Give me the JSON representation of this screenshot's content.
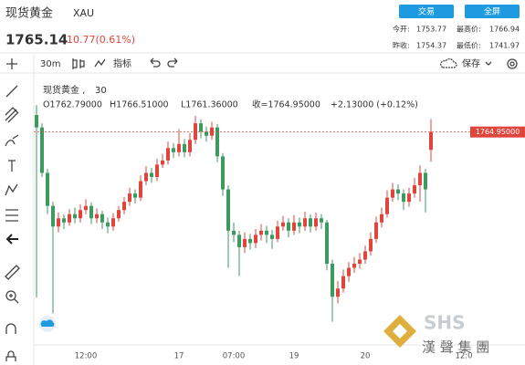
{
  "header": {
    "name": "现货黄金",
    "symbol": "XAU",
    "price": "1765.14",
    "change": "10.77(0.61%)",
    "buttons": [
      "交易",
      "全屏"
    ],
    "stats": [
      {
        "label": "今开:",
        "value": "1753.77"
      },
      {
        "label": "最高价:",
        "value": "1766.94"
      },
      {
        "label": "昨收:",
        "value": "1754.37"
      },
      {
        "label": "最低价:",
        "value": "1741.97"
      }
    ]
  },
  "toolbar": {
    "interval": "30m",
    "indicators": "指标",
    "save": "保存"
  },
  "legend": {
    "name": "现货黄金 ,",
    "interval": "30",
    "open": "O1762.79000",
    "high": "H1766.51000",
    "low": "L1761.36000",
    "close": "收=1764.95000",
    "change": "+2.13000 (+0.12%)"
  },
  "watermark": {
    "logo": "SHS",
    "text": "漢 聲 集 團"
  },
  "chart_data": {
    "type": "candlestick",
    "up_color": "#e0453c",
    "down_color": "#3c9a5f",
    "ylim": [
      1739.5,
      1769
    ],
    "price_line": {
      "value": 1764.95,
      "label": "1764.95000"
    },
    "categories": [
      null,
      null,
      null,
      null,
      null,
      null,
      null,
      null,
      null,
      "12:00",
      null,
      null,
      null,
      null,
      null,
      null,
      null,
      null,
      null,
      null,
      null,
      null,
      null,
      null,
      null,
      null,
      "17",
      null,
      null,
      null,
      null,
      null,
      null,
      null,
      null,
      null,
      "07:00",
      null,
      null,
      null,
      null,
      null,
      null,
      null,
      null,
      null,
      null,
      "19",
      null,
      null,
      null,
      null,
      null,
      null,
      null,
      null,
      null,
      null,
      null,
      null,
      "20",
      null,
      null,
      null,
      null,
      null,
      null,
      null,
      null,
      null,
      null,
      null,
      null,
      null,
      null,
      null,
      null,
      null,
      "12:0"
    ],
    "open": [
      1767,
      1765.5,
      1760,
      1756,
      1753.5,
      1754.5,
      1754,
      1755,
      1754.5,
      1755.5,
      1756,
      1754.5,
      1755,
      1754,
      1753.5,
      1754.5,
      1755.5,
      1756.5,
      1757.5,
      1757,
      1759,
      1760,
      1759.5,
      1761,
      1761.5,
      1763,
      1762.5,
      1763.5,
      1762.5,
      1764,
      1766,
      1765,
      1764.5,
      1765.5,
      1762,
      1758,
      1753,
      1752.5,
      1751,
      1752,
      1751.5,
      1752.5,
      1753,
      1752.5,
      1752,
      1753.5,
      1754,
      1753,
      1754,
      1753.5,
      1754.5,
      1753.5,
      1754.5,
      1754,
      1749,
      1745,
      1746,
      1747.5,
      1748.5,
      1749,
      1749.5,
      1750.5,
      1752,
      1754,
      1755,
      1757,
      1758,
      1757.5,
      1756.5,
      1757.5,
      1758.5,
      1760,
      1762.79,
      null,
      null,
      null,
      null,
      null,
      null
    ],
    "high": [
      1768.2,
      1766,
      1760.5,
      1756.5,
      1755.2,
      1755,
      1755.6,
      1755.8,
      1756.2,
      1756.8,
      1756.4,
      1755.7,
      1755.4,
      1754.6,
      1755.1,
      1756,
      1757.1,
      1758.2,
      1758,
      1759.7,
      1760.8,
      1760.6,
      1761.7,
      1762.3,
      1763.8,
      1763.6,
      1765.3,
      1764.1,
      1764.8,
      1766.9,
      1766.5,
      1765.6,
      1766.2,
      1765.9,
      1762.4,
      1758.5,
      1754,
      1753,
      1752.8,
      1752.6,
      1753.2,
      1753.8,
      1753.6,
      1753.1,
      1754.2,
      1754.8,
      1754.5,
      1754.9,
      1754.6,
      1755.3,
      1755,
      1755.2,
      1755,
      1754.3,
      1749.5,
      1746.9,
      1748.3,
      1749.2,
      1749.8,
      1750.3,
      1751.2,
      1752.8,
      1754.7,
      1755.8,
      1757.9,
      1758.8,
      1758.6,
      1758,
      1758.2,
      1759.4,
      1760.9,
      1760.5,
      1766.51,
      null,
      null,
      null,
      null,
      null,
      null
    ],
    "low": [
      1744.9,
      1759.5,
      1755,
      1743,
      1752.8,
      1753.2,
      1753.6,
      1753.9,
      1754,
      1755,
      1753.8,
      1753.9,
      1753.2,
      1752.7,
      1753,
      1754.1,
      1755,
      1756,
      1756.3,
      1756.6,
      1758.5,
      1758.8,
      1759,
      1760.6,
      1761,
      1761.8,
      1762,
      1761.9,
      1762,
      1763.5,
      1764.2,
      1763.8,
      1764,
      1761.3,
      1757.2,
      1748.5,
      1751.6,
      1747.5,
      1750.3,
      1750.7,
      1750.9,
      1751.8,
      1751.5,
      1750.8,
      1751.6,
      1753,
      1752.2,
      1752.5,
      1752.7,
      1753,
      1752.8,
      1753,
      1753.2,
      1748.2,
      1741.97,
      1744.2,
      1745.5,
      1746.8,
      1747.9,
      1748.4,
      1749,
      1750,
      1751.5,
      1753.4,
      1754.6,
      1756.5,
      1756.7,
      1755.5,
      1755.9,
      1757,
      1756.5,
      1755.2,
      1761.36,
      null,
      null,
      null,
      null,
      null,
      null
    ],
    "close": [
      1765.5,
      1760,
      1756,
      1753.5,
      1754.5,
      1754,
      1755,
      1754.5,
      1755.5,
      1756,
      1754.5,
      1755,
      1754,
      1753.5,
      1754.5,
      1755.5,
      1756.5,
      1757.5,
      1757,
      1759,
      1760,
      1759.5,
      1761,
      1761.5,
      1763,
      1762.5,
      1763.5,
      1762.5,
      1764,
      1766,
      1765,
      1764.5,
      1765.5,
      1762,
      1758,
      1753,
      1752.5,
      1751,
      1752,
      1751.5,
      1752.5,
      1753,
      1752.5,
      1752,
      1753.5,
      1754,
      1753,
      1754,
      1753.5,
      1754.5,
      1753.5,
      1754.5,
      1754,
      1749,
      1745,
      1746,
      1747.5,
      1748.5,
      1749,
      1749.5,
      1750.5,
      1752,
      1754,
      1755,
      1757,
      1758,
      1757.5,
      1756.5,
      1757.5,
      1758.5,
      1760,
      1758,
      1764.95,
      null,
      null,
      null,
      null,
      null,
      null
    ]
  }
}
